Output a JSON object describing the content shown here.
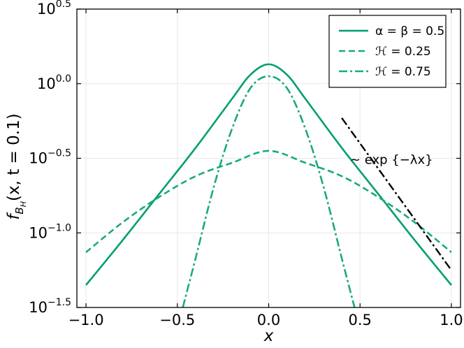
{
  "chart_data": {
    "type": "line",
    "xlabel": "x",
    "ylabel": "f_{B_H}(x, t = 0.1)",
    "ylabel_parts": {
      "f": "f",
      "sub": "B",
      "subsub": "H",
      "rest": "(x, t = 0.1)"
    },
    "xlim": [
      -1.05,
      1.05
    ],
    "ylim_log10": [
      -1.5,
      0.5
    ],
    "y_scale": "log",
    "grid": true,
    "legend_position": "top-right",
    "x_ticks": [
      -1.0,
      -0.5,
      0.0,
      0.5,
      1.0
    ],
    "x_tick_labels": [
      "−1.0",
      "−0.5",
      "0.0",
      "0.5",
      "1.0"
    ],
    "y_ticks_log10": [
      -1.5,
      -1.0,
      -0.5,
      0.0,
      0.5
    ],
    "y_tick_base": "10",
    "y_tick_exponents": [
      "−1.5",
      "−1.0",
      "−0.5",
      "0.0",
      "0.5"
    ],
    "series": [
      {
        "name": "α = β = 0.5",
        "style": "solid",
        "color": "#009E73",
        "x": [
          -1.0,
          -0.8,
          -0.6,
          -0.4,
          -0.2,
          -0.1,
          0.0,
          0.1,
          0.2,
          0.4,
          0.6,
          0.8,
          1.0
        ],
        "y_log10": [
          -1.35,
          -1.05,
          -0.74,
          -0.43,
          -0.1,
          0.06,
          0.13,
          0.06,
          -0.1,
          -0.43,
          -0.74,
          -1.05,
          -1.35
        ]
      },
      {
        "name": "ℋ = 0.25",
        "style": "dashed",
        "color": "#1AAA7A",
        "x": [
          -1.0,
          -0.8,
          -0.6,
          -0.4,
          -0.2,
          0.0,
          0.2,
          0.4,
          0.6,
          0.8,
          1.0
        ],
        "y_log10": [
          -1.13,
          -0.93,
          -0.76,
          -0.62,
          -0.53,
          -0.45,
          -0.53,
          -0.62,
          -0.76,
          -0.93,
          -1.13
        ]
      },
      {
        "name": "ℋ = 0.75",
        "style": "dashdot",
        "color": "#1AAA7A",
        "x": [
          -0.47,
          -0.4,
          -0.3,
          -0.2,
          -0.1,
          0.0,
          0.1,
          0.2,
          0.3,
          0.4,
          0.47
        ],
        "y_log10": [
          -1.5,
          -1.17,
          -0.69,
          -0.3,
          -0.03,
          0.05,
          -0.03,
          -0.3,
          -0.69,
          -1.17,
          -1.5
        ]
      }
    ],
    "reference_line": {
      "style": "dashdot",
      "color": "#000000",
      "x": [
        0.4,
        1.0
      ],
      "y_log10": [
        -0.23,
        -1.25
      ]
    },
    "annotation": {
      "text": "~ exp {−λx}",
      "x": 0.56,
      "y_log10": -0.51
    }
  }
}
